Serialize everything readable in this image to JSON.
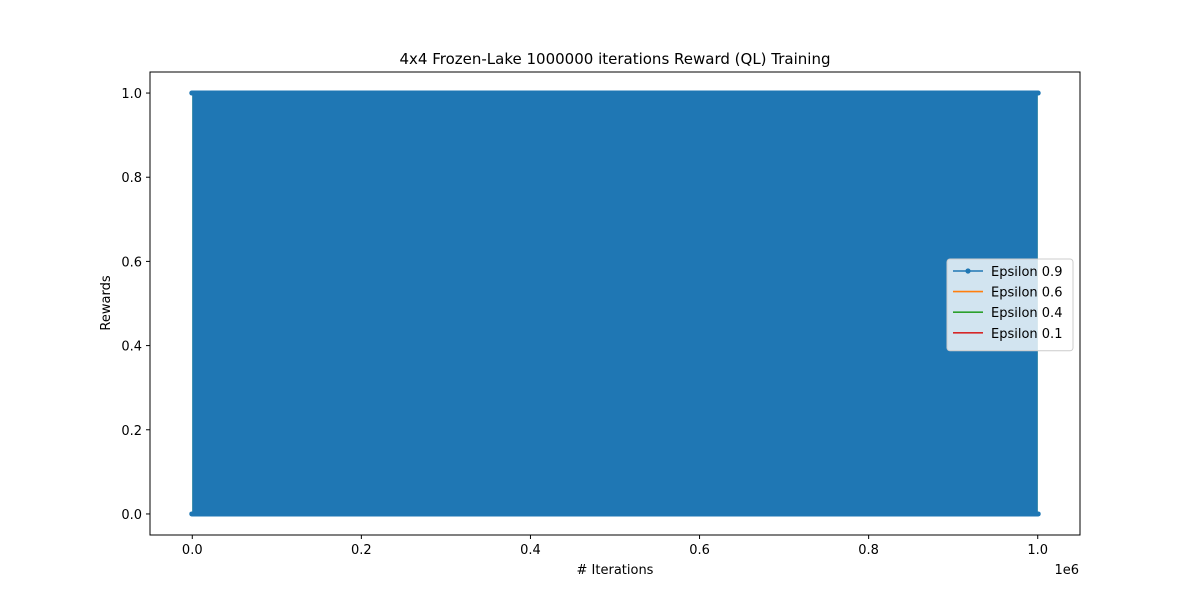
{
  "chart_data": {
    "type": "line",
    "title": "4x4 Frozen-Lake 1000000 iterations  Reward (QL) Training",
    "xlabel": "# Iterations",
    "ylabel": "Rewards",
    "x_offset_label": "1e6",
    "xlim": [
      -0.05,
      1.05
    ],
    "ylim": [
      -0.05,
      1.05
    ],
    "x_ticks": [
      0.0,
      0.2,
      0.4,
      0.6,
      0.8,
      1.0
    ],
    "x_tick_labels": [
      "0.0",
      "0.2",
      "0.4",
      "0.6",
      "0.8",
      "1.0"
    ],
    "y_ticks": [
      0.0,
      0.2,
      0.4,
      0.6,
      0.8,
      1.0
    ],
    "y_tick_labels": [
      "0.0",
      "0.2",
      "0.4",
      "0.6",
      "0.8",
      "1.0"
    ],
    "x_range": [
      0.0,
      1.0
    ],
    "legend_position": "center-right",
    "grid": false,
    "series": [
      {
        "name": "Epsilon 0.9",
        "color": "#1f77b4",
        "marker": "dot",
        "x": [
          0.0,
          1.0
        ],
        "value_min": 0.0,
        "value_max": 1.0
      },
      {
        "name": "Epsilon 0.6",
        "color": "#ff7f0e",
        "marker": "none",
        "x": [
          0.0,
          1.0
        ],
        "value_min": 0.0,
        "value_max": 0.0
      },
      {
        "name": "Epsilon 0.4",
        "color": "#2ca02c",
        "marker": "none",
        "x": [
          0.0,
          1.0
        ],
        "value_min": 0.0,
        "value_max": 1.0
      },
      {
        "name": "Epsilon 0.1",
        "color": "#d62728",
        "marker": "none",
        "x": [
          0.0,
          1.0
        ],
        "value_min": 0.0,
        "value_max": 0.0
      }
    ]
  }
}
